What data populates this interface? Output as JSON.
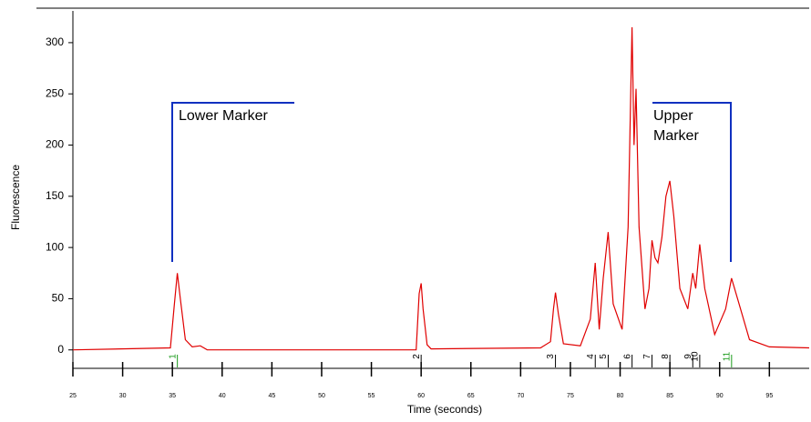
{
  "chart_data": {
    "type": "line",
    "x_label": "Time (seconds)",
    "y_label": "Fluorescence",
    "xlim": [
      25,
      99
    ],
    "ylim": [
      -18,
      331
    ],
    "xticks": [
      25,
      30,
      35,
      40,
      45,
      50,
      55,
      60,
      65,
      70,
      75,
      80,
      85,
      90,
      95
    ],
    "yticks": [
      0,
      50,
      100,
      150,
      200,
      250,
      300
    ],
    "color": "#e00000",
    "x": [
      25,
      34.8,
      35.2,
      35.5,
      35.8,
      36.3,
      37,
      37.8,
      38.5,
      59.5,
      59.8,
      60,
      60.2,
      60.6,
      61,
      72,
      73,
      73.3,
      73.5,
      73.8,
      74.3,
      76,
      77,
      77.5,
      77.9,
      78.3,
      78.8,
      79.3,
      80.2,
      80.8,
      81.2,
      81.4,
      81.6,
      81.9,
      82.5,
      82.9,
      83.2,
      83.5,
      83.8,
      84.2,
      84.6,
      85,
      85.4,
      86,
      86.8,
      87.3,
      87.6,
      88,
      88.5,
      89.5,
      90.6,
      91.2,
      91.8,
      93,
      95,
      99
    ],
    "y": [
      0,
      2,
      45,
      75,
      50,
      10,
      3,
      4,
      0,
      0,
      55,
      65,
      40,
      5,
      1,
      2,
      8,
      40,
      56,
      35,
      6,
      4,
      30,
      85,
      20,
      70,
      115,
      45,
      20,
      120,
      315,
      200,
      255,
      120,
      40,
      60,
      107,
      90,
      85,
      110,
      150,
      165,
      130,
      60,
      40,
      75,
      60,
      103,
      60,
      15,
      40,
      70,
      50,
      10,
      3,
      2
    ],
    "peaks": [
      {
        "label": "1",
        "x": 35.5,
        "color": "#1a9a1a"
      },
      {
        "label": "2",
        "x": 60
      },
      {
        "label": "3",
        "x": 73.5
      },
      {
        "label": "4",
        "x": 77.5
      },
      {
        "label": "5",
        "x": 78.8
      },
      {
        "label": "6",
        "x": 81.2
      },
      {
        "label": "7",
        "x": 83.2
      },
      {
        "label": "8",
        "x": 85
      },
      {
        "label": "9",
        "x": 87.3
      },
      {
        "label": "10",
        "x": 88
      },
      {
        "label": "11",
        "x": 91.2,
        "color": "#1a9a1a"
      }
    ],
    "annotations": [
      "Lower Marker",
      "Upper\nMarker"
    ]
  }
}
